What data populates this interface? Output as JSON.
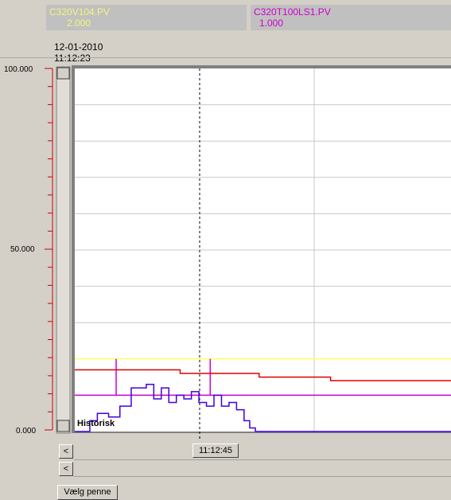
{
  "tags": [
    {
      "name": "C320V104.PV",
      "value": "2.000",
      "color": "#f5f57a"
    },
    {
      "name": "C320T100LS1.PV",
      "value": "1.000",
      "color": "#cc00cc"
    }
  ],
  "timestamp": {
    "date": "12-01-2010",
    "time": "11:12:23"
  },
  "axis": {
    "top_label": "100.000",
    "mid_label": "50.000",
    "bottom_label": "0.000",
    "color": "#cc0000"
  },
  "mode_label": "Historisk",
  "cursor_time": "11:12:45",
  "scroll_left_label": "<",
  "scroll_left2_label": "<",
  "select_pens_label": "Vælg penne",
  "chart_data": {
    "type": "line",
    "ylim": [
      0,
      100
    ],
    "series": [
      {
        "color": "#ffff66",
        "x": [
          0,
          1
        ],
        "y": [
          20,
          20
        ]
      },
      {
        "color": "#cc00cc",
        "x": [
          0,
          0.11,
          0.11,
          0.11,
          0.36,
          0.36,
          0.36,
          1
        ],
        "y": [
          10,
          10,
          20,
          10,
          10,
          20,
          10,
          10
        ]
      },
      {
        "color": "#e00000",
        "x": [
          0,
          0.28,
          0.28,
          0.49,
          0.49,
          0.68,
          0.68,
          1
        ],
        "y": [
          17,
          17,
          16,
          16,
          15,
          15,
          14,
          14
        ]
      },
      {
        "color": "#4000e0",
        "x": [
          0,
          0.04,
          0.06,
          0.09,
          0.12,
          0.15,
          0.19,
          0.21,
          0.23,
          0.25,
          0.27,
          0.29,
          0.31,
          0.33,
          0.35,
          0.37,
          0.39,
          0.41,
          0.43,
          0.45,
          0.465,
          0.48,
          1
        ],
        "y": [
          0,
          3,
          5,
          4,
          7,
          12,
          13,
          9,
          12,
          8,
          10,
          9,
          11,
          8,
          7,
          10,
          7,
          8,
          6,
          3,
          1,
          0,
          0
        ]
      }
    ]
  }
}
